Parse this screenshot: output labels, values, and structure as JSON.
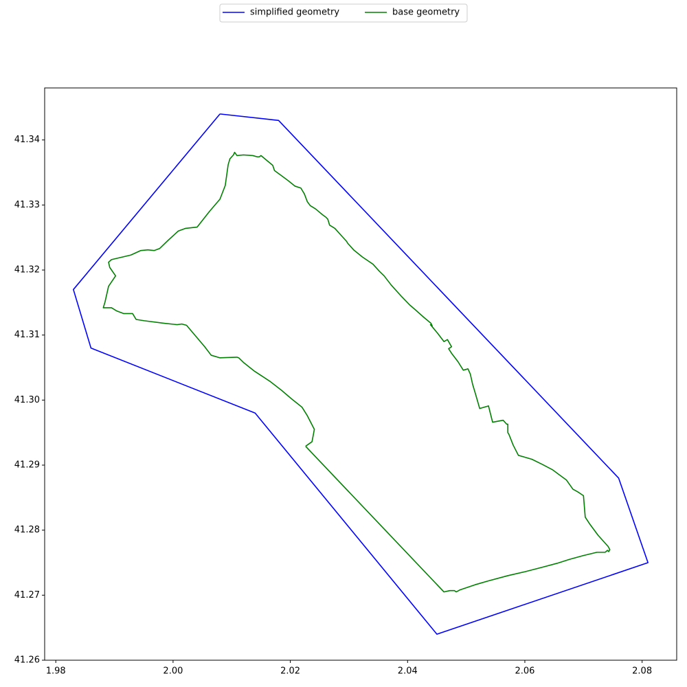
{
  "chart_data": {
    "type": "line",
    "legend": "upper center",
    "xlim": [
      1.9781,
      2.0859
    ],
    "ylim": [
      41.26,
      41.348
    ],
    "xticks": [
      1.98,
      {
        "value": 2,
        "label": "2.00"
      },
      2.02,
      2.04,
      2.06,
      2.08
    ],
    "yticks": [
      41.26,
      41.27,
      41.28,
      41.29,
      {
        "value": 41.3,
        "label": "41.30"
      },
      41.31,
      41.32,
      41.33,
      41.34
    ],
    "grid": false,
    "series": [
      {
        "name": "simplified geometry",
        "color": "#0000ff",
        "x": [
          2.008,
          2.018,
          2.076,
          2.081,
          2.045,
          2.014,
          1.986,
          1.983,
          2.008
        ],
        "values": [
          41.344,
          41.343,
          41.288,
          41.275,
          41.264,
          41.298,
          41.308,
          41.317,
          41.344
        ]
      },
      {
        "name": "base geometry",
        "color": "#008000",
        "x": [
          2.0226,
          2.0237,
          2.0241,
          2.0229,
          2.022,
          2.0202,
          2.0185,
          2.0165,
          2.0138,
          2.012,
          2.0112,
          2.0109,
          2.008,
          2.0065,
          2.0054,
          2.0039,
          2.0023,
          2.0015,
          2.0007,
          1.9986,
          1.9951,
          1.9937,
          1.9931,
          1.9916,
          1.9904,
          1.9895,
          1.9881,
          1.9884,
          1.989,
          1.9902,
          1.9892,
          1.989,
          1.9895,
          1.9928,
          1.9945,
          1.9957,
          1.9968,
          1.9977,
          1.9992,
          2.0009,
          2.0021,
          2.0041,
          2.0062,
          2.008,
          2.0089,
          2.0094,
          2.0097,
          2.0103,
          2.0105,
          2.0109,
          2.012,
          2.0136,
          2.0144,
          2.0147,
          2.015,
          2.0162,
          2.017,
          2.0173,
          2.0185,
          2.0197,
          2.0208,
          2.0218,
          2.0224,
          2.0229,
          2.0234,
          2.0243,
          2.0255,
          2.0261,
          2.0264,
          2.0267,
          2.0276,
          2.0287,
          2.0296,
          2.0298,
          2.0308,
          2.0323,
          2.0341,
          2.0352,
          2.036,
          2.0372,
          2.039,
          2.0404,
          2.0413,
          2.0428,
          2.044,
          2.0442,
          2.0439,
          2.0451,
          2.0462,
          2.0468,
          2.0475,
          2.047,
          2.0475,
          2.0486,
          2.0495,
          2.0503,
          2.0507,
          2.0511,
          2.0516,
          2.0523,
          2.0538,
          2.0545,
          2.0563,
          2.0569,
          2.0571,
          2.0571,
          2.0573,
          2.058,
          2.0589,
          2.0597,
          2.0612,
          2.063,
          2.0647,
          2.0659,
          2.0671,
          2.0682,
          2.069,
          2.07,
          2.0703,
          2.0711,
          2.0725,
          2.0742,
          2.0745,
          2.0743,
          2.0741,
          2.0737,
          2.0723,
          2.0714,
          2.07,
          2.0676,
          2.0655,
          2.063,
          2.06,
          2.0571,
          2.0538,
          2.0515,
          2.0489,
          2.0483,
          2.048,
          2.0472,
          2.0462,
          2.0226
        ],
        "values": [
          41.2929,
          41.2936,
          41.2955,
          41.2976,
          41.2989,
          41.3002,
          41.3015,
          41.3029,
          41.3045,
          41.3058,
          41.3065,
          41.3066,
          41.3065,
          41.3069,
          41.3082,
          41.3098,
          41.3115,
          41.3117,
          41.3116,
          41.3118,
          41.3122,
          41.3124,
          41.3133,
          41.3133,
          41.3137,
          41.3142,
          41.3142,
          41.3151,
          41.3175,
          41.3191,
          41.3204,
          41.3212,
          41.3216,
          41.3223,
          41.323,
          41.3231,
          41.323,
          41.3233,
          41.3246,
          41.326,
          41.3264,
          41.3266,
          41.329,
          41.3309,
          41.333,
          41.3362,
          41.3371,
          41.3377,
          41.3381,
          41.3376,
          41.3377,
          41.3376,
          41.3374,
          41.3374,
          41.3376,
          41.3367,
          41.3361,
          41.3353,
          41.3345,
          41.3337,
          41.3329,
          41.3326,
          41.3317,
          41.3305,
          41.3299,
          41.3294,
          41.3285,
          41.3281,
          41.3278,
          41.3269,
          41.3264,
          41.3253,
          41.3244,
          41.3241,
          41.3231,
          41.322,
          41.3209,
          41.3198,
          41.3191,
          41.3177,
          41.3159,
          41.3146,
          41.3139,
          41.3127,
          41.3118,
          41.3114,
          41.3116,
          41.3103,
          41.309,
          41.3093,
          41.3082,
          41.3079,
          41.3072,
          41.3059,
          41.3046,
          41.3048,
          41.304,
          41.3024,
          41.3009,
          41.2987,
          41.2991,
          41.2966,
          41.2969,
          41.2963,
          41.2963,
          41.295,
          41.2947,
          41.2931,
          41.2915,
          41.2913,
          41.2909,
          41.2901,
          41.2893,
          41.2885,
          41.2877,
          41.2863,
          41.2859,
          41.2853,
          41.282,
          41.2809,
          41.2792,
          41.2775,
          41.277,
          41.2767,
          41.2769,
          41.2766,
          41.2766,
          41.2764,
          41.2761,
          41.2755,
          41.2749,
          41.2743,
          41.2736,
          41.273,
          41.2722,
          41.2716,
          41.2708,
          41.2705,
          41.2707,
          41.2707,
          41.2705,
          41.2929
        ]
      }
    ]
  }
}
